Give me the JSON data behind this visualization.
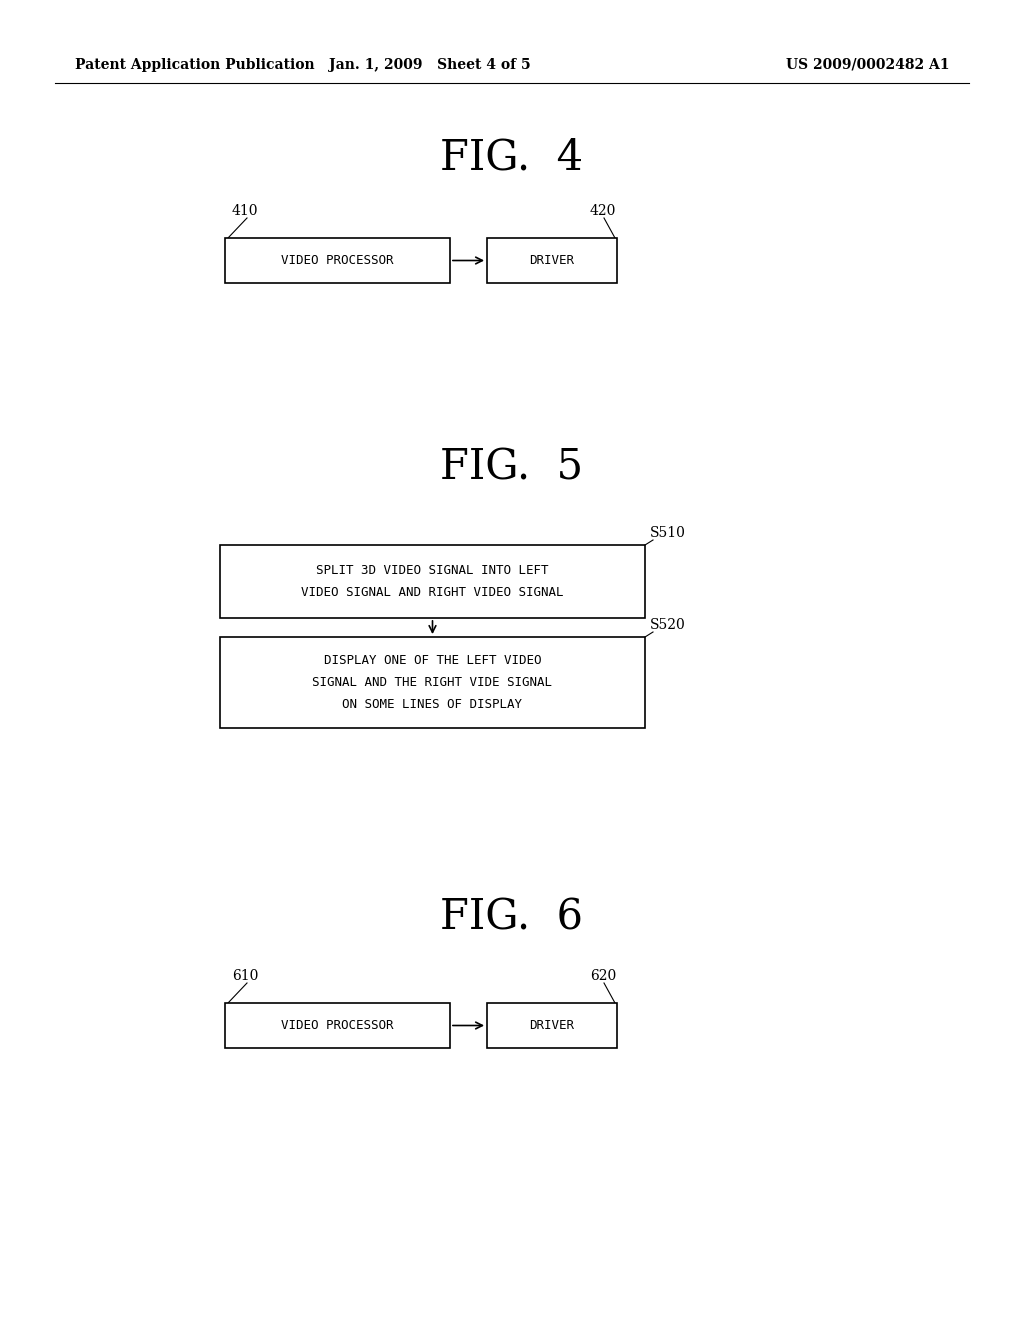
{
  "background_color": "#ffffff",
  "header_left": "Patent Application Publication",
  "header_center": "Jan. 1, 2009   Sheet 4 of 5",
  "header_right": "US 2009/0002482 A1",
  "fig4_title": "FIG.  4",
  "fig5_title": "FIG.  5",
  "fig6_title": "FIG.  6",
  "fig4_box1_label": "VIDEO PROCESSOR",
  "fig4_box2_label": "DRIVER",
  "fig4_label1": "410",
  "fig4_label2": "420",
  "fig5_box1_line1": "SPLIT 3D VIDEO SIGNAL INTO LEFT",
  "fig5_box1_line2": "VIDEO SIGNAL AND RIGHT VIDEO SIGNAL",
  "fig5_box2_line1": "DISPLAY ONE OF THE LEFT VIDEO",
  "fig5_box2_line2": "SIGNAL AND THE RIGHT VIDE SIGNAL",
  "fig5_box2_line3": "ON SOME LINES OF DISPLAY",
  "fig5_label1": "S510",
  "fig5_label2": "S520",
  "fig6_box1_label": "VIDEO PROCESSOR",
  "fig6_box2_label": "DRIVER",
  "fig6_label1": "610",
  "fig6_label2": "620"
}
